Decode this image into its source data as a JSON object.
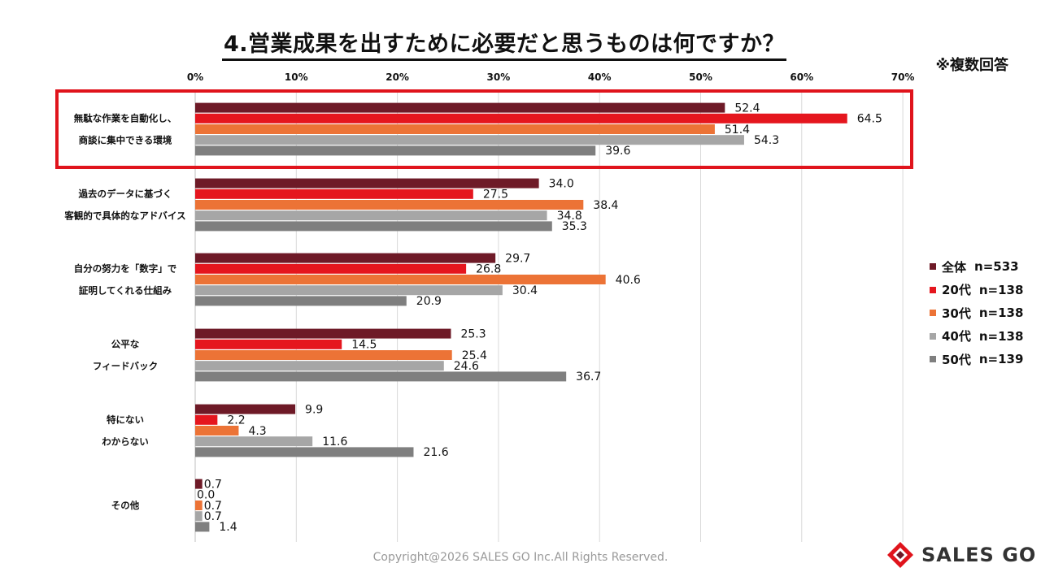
{
  "title": "4.営業成果を出すために必要だと思うものは何ですか？",
  "note": "※複数回答",
  "copyright": "Copyright@2026 SALES GO Inc.All Rights Reserved.",
  "logo_text": "SALES GO",
  "colors": {
    "highlight_box": "#e0141c",
    "grid": "#d9d9d9"
  },
  "chart_data": {
    "type": "bar",
    "orientation": "horizontal",
    "xlim": [
      0,
      70
    ],
    "x_ticks": [
      0,
      10,
      20,
      30,
      40,
      50,
      60,
      70
    ],
    "x_tick_labels": [
      "0%",
      "10%",
      "20%",
      "30%",
      "40%",
      "50%",
      "60%",
      "70%"
    ],
    "grid": "vertical",
    "legend_position": "right",
    "categories": [
      [
        "無駄な作業を自動化し、",
        "商談に集中できる環境"
      ],
      [
        "過去のデータに基づく",
        "客観的で具体的なアドバイス"
      ],
      [
        "自分の努力を「数字」で",
        "証明してくれる仕組み"
      ],
      [
        "公平な",
        "フィードバック"
      ],
      [
        "特にない",
        "わからない"
      ],
      [
        "その他"
      ]
    ],
    "highlighted_category": 0,
    "series": [
      {
        "name": "全体",
        "n": "n=533",
        "color": "#6e1a27",
        "values": [
          52.4,
          34.0,
          29.7,
          25.3,
          9.9,
          0.7
        ]
      },
      {
        "name": "20代",
        "n": "n=138",
        "color": "#e5161e",
        "values": [
          64.5,
          27.5,
          26.8,
          14.5,
          2.2,
          0.0
        ]
      },
      {
        "name": "30代",
        "n": "n=138",
        "color": "#ec7336",
        "values": [
          51.4,
          38.4,
          40.6,
          25.4,
          4.3,
          0.7
        ]
      },
      {
        "name": "40代",
        "n": "n=138",
        "color": "#a6a6a6",
        "values": [
          54.3,
          34.8,
          30.4,
          24.6,
          11.6,
          0.7
        ]
      },
      {
        "name": "50代",
        "n": "n=139",
        "color": "#7f7f7f",
        "values": [
          39.6,
          35.3,
          20.9,
          36.7,
          21.6,
          1.4
        ]
      }
    ]
  }
}
